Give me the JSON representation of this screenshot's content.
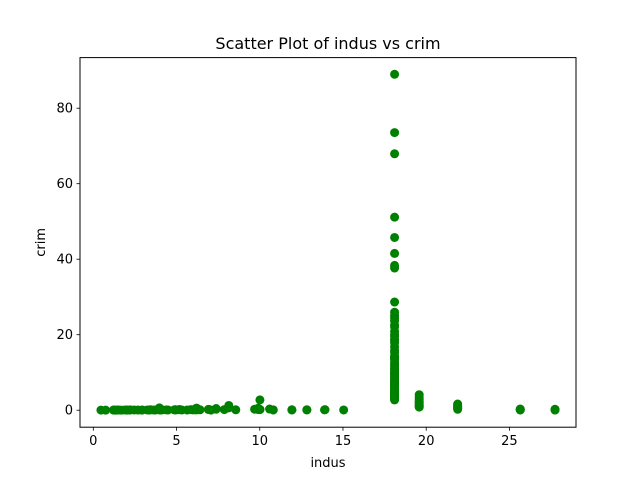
{
  "chart_data": {
    "type": "scatter",
    "title": "Scatter Plot of indus vs crim",
    "xlabel": "indus",
    "ylabel": "crim",
    "xlim": [
      -0.8,
      29.0
    ],
    "ylim": [
      -4.5,
      93.4
    ],
    "xticks": [
      0,
      5,
      10,
      15,
      20,
      25
    ],
    "yticks": [
      0,
      20,
      40,
      60,
      80
    ],
    "grid": false,
    "color": "#008000",
    "series": [
      {
        "points": [
          {
            "x": 0.46,
            "y": 0.03
          },
          {
            "x": 0.74,
            "y": 0.02
          },
          {
            "x": 1.21,
            "y": 0.04
          },
          {
            "x": 1.25,
            "y": 0.02
          },
          {
            "x": 1.32,
            "y": 0.03
          },
          {
            "x": 1.38,
            "y": 0.01
          },
          {
            "x": 1.47,
            "y": 0.05
          },
          {
            "x": 1.52,
            "y": 0.04
          },
          {
            "x": 1.69,
            "y": 0.02
          },
          {
            "x": 1.89,
            "y": 0.07
          },
          {
            "x": 2.01,
            "y": 0.05
          },
          {
            "x": 2.02,
            "y": 0.03
          },
          {
            "x": 2.18,
            "y": 0.04
          },
          {
            "x": 2.24,
            "y": 0.08
          },
          {
            "x": 2.46,
            "y": 0.06
          },
          {
            "x": 2.68,
            "y": 0.05
          },
          {
            "x": 2.89,
            "y": 0.03
          },
          {
            "x": 2.95,
            "y": 0.06
          },
          {
            "x": 3.24,
            "y": 0.07
          },
          {
            "x": 3.37,
            "y": 0.04
          },
          {
            "x": 3.41,
            "y": 0.09
          },
          {
            "x": 3.44,
            "y": 0.12
          },
          {
            "x": 3.64,
            "y": 0.05
          },
          {
            "x": 3.75,
            "y": 0.06
          },
          {
            "x": 3.97,
            "y": 0.62
          },
          {
            "x": 3.97,
            "y": 0.33
          },
          {
            "x": 3.97,
            "y": 0.11
          },
          {
            "x": 4.0,
            "y": 0.08
          },
          {
            "x": 4.05,
            "y": 0.05
          },
          {
            "x": 4.15,
            "y": 0.09
          },
          {
            "x": 4.39,
            "y": 0.1
          },
          {
            "x": 4.49,
            "y": 0.07
          },
          {
            "x": 4.86,
            "y": 0.09
          },
          {
            "x": 4.93,
            "y": 0.14
          },
          {
            "x": 4.95,
            "y": 0.06
          },
          {
            "x": 5.13,
            "y": 0.13
          },
          {
            "x": 5.19,
            "y": 0.18
          },
          {
            "x": 5.32,
            "y": 0.06
          },
          {
            "x": 5.64,
            "y": 0.04
          },
          {
            "x": 5.86,
            "y": 0.17
          },
          {
            "x": 5.96,
            "y": 0.09
          },
          {
            "x": 6.06,
            "y": 0.11
          },
          {
            "x": 6.07,
            "y": 0.15
          },
          {
            "x": 6.2,
            "y": 0.32
          },
          {
            "x": 6.2,
            "y": 0.56
          },
          {
            "x": 6.2,
            "y": 0.08
          },
          {
            "x": 6.41,
            "y": 0.12
          },
          {
            "x": 6.91,
            "y": 0.21
          },
          {
            "x": 6.96,
            "y": 0.18
          },
          {
            "x": 7.07,
            "y": 0.03
          },
          {
            "x": 7.38,
            "y": 0.26
          },
          {
            "x": 7.38,
            "y": 0.45
          },
          {
            "x": 7.87,
            "y": 0.17
          },
          {
            "x": 8.14,
            "y": 0.63
          },
          {
            "x": 8.14,
            "y": 1.25
          },
          {
            "x": 8.14,
            "y": 0.84
          },
          {
            "x": 8.56,
            "y": 0.11
          },
          {
            "x": 9.69,
            "y": 0.26
          },
          {
            "x": 9.9,
            "y": 0.18
          },
          {
            "x": 9.9,
            "y": 0.52
          },
          {
            "x": 10.01,
            "y": 2.73
          },
          {
            "x": 10.01,
            "y": 0.17
          },
          {
            "x": 10.01,
            "y": 0.22
          },
          {
            "x": 10.59,
            "y": 0.31
          },
          {
            "x": 10.81,
            "y": 0.09
          },
          {
            "x": 10.81,
            "y": 0.07
          },
          {
            "x": 11.93,
            "y": 0.06
          },
          {
            "x": 11.93,
            "y": 0.11
          },
          {
            "x": 12.83,
            "y": 0.08
          },
          {
            "x": 12.83,
            "y": 0.12
          },
          {
            "x": 13.89,
            "y": 0.09
          },
          {
            "x": 13.92,
            "y": 0.15
          },
          {
            "x": 15.04,
            "y": 0.07
          },
          {
            "x": 18.1,
            "y": 88.98
          },
          {
            "x": 18.1,
            "y": 73.53
          },
          {
            "x": 18.1,
            "y": 67.92
          },
          {
            "x": 18.1,
            "y": 51.14
          },
          {
            "x": 18.1,
            "y": 45.75
          },
          {
            "x": 18.1,
            "y": 41.53
          },
          {
            "x": 18.1,
            "y": 38.35
          },
          {
            "x": 18.1,
            "y": 37.66
          },
          {
            "x": 18.1,
            "y": 28.66
          },
          {
            "x": 18.1,
            "y": 25.95
          },
          {
            "x": 18.1,
            "y": 25.05
          },
          {
            "x": 18.1,
            "y": 24.39
          },
          {
            "x": 18.1,
            "y": 23.65
          },
          {
            "x": 18.1,
            "y": 22.6
          },
          {
            "x": 18.1,
            "y": 22.05
          },
          {
            "x": 18.1,
            "y": 20.85
          },
          {
            "x": 18.1,
            "y": 20.08
          },
          {
            "x": 18.1,
            "y": 19.61
          },
          {
            "x": 18.1,
            "y": 18.81
          },
          {
            "x": 18.1,
            "y": 18.5
          },
          {
            "x": 18.1,
            "y": 17.87
          },
          {
            "x": 18.1,
            "y": 16.81
          },
          {
            "x": 18.1,
            "y": 15.86
          },
          {
            "x": 18.1,
            "y": 15.29
          },
          {
            "x": 18.1,
            "y": 14.33
          },
          {
            "x": 18.1,
            "y": 14.05
          },
          {
            "x": 18.1,
            "y": 13.68
          },
          {
            "x": 18.1,
            "y": 13.52
          },
          {
            "x": 18.1,
            "y": 12.8
          },
          {
            "x": 18.1,
            "y": 12.25
          },
          {
            "x": 18.1,
            "y": 11.81
          },
          {
            "x": 18.1,
            "y": 11.16
          },
          {
            "x": 18.1,
            "y": 10.83
          },
          {
            "x": 18.1,
            "y": 10.23
          },
          {
            "x": 18.1,
            "y": 9.92
          },
          {
            "x": 18.1,
            "y": 9.59
          },
          {
            "x": 18.1,
            "y": 9.33
          },
          {
            "x": 18.1,
            "y": 8.98
          },
          {
            "x": 18.1,
            "y": 8.72
          },
          {
            "x": 18.1,
            "y": 8.27
          },
          {
            "x": 18.1,
            "y": 8.05
          },
          {
            "x": 18.1,
            "y": 7.67
          },
          {
            "x": 18.1,
            "y": 7.4
          },
          {
            "x": 18.1,
            "y": 7.05
          },
          {
            "x": 18.1,
            "y": 6.8
          },
          {
            "x": 18.1,
            "y": 6.65
          },
          {
            "x": 18.1,
            "y": 6.44
          },
          {
            "x": 18.1,
            "y": 6.28
          },
          {
            "x": 18.1,
            "y": 5.87
          },
          {
            "x": 18.1,
            "y": 5.58
          },
          {
            "x": 18.1,
            "y": 5.29
          },
          {
            "x": 18.1,
            "y": 5.09
          },
          {
            "x": 18.1,
            "y": 4.87
          },
          {
            "x": 18.1,
            "y": 4.66
          },
          {
            "x": 18.1,
            "y": 4.42
          },
          {
            "x": 18.1,
            "y": 4.22
          },
          {
            "x": 18.1,
            "y": 4.03
          },
          {
            "x": 18.1,
            "y": 3.85
          },
          {
            "x": 18.1,
            "y": 3.69
          },
          {
            "x": 18.1,
            "y": 3.47
          },
          {
            "x": 18.1,
            "y": 3.32
          },
          {
            "x": 18.1,
            "y": 3.16
          },
          {
            "x": 18.1,
            "y": 2.92
          },
          {
            "x": 18.1,
            "y": 2.73
          },
          {
            "x": 19.58,
            "y": 4.1
          },
          {
            "x": 19.58,
            "y": 3.53
          },
          {
            "x": 19.58,
            "y": 2.95
          },
          {
            "x": 19.58,
            "y": 2.45
          },
          {
            "x": 19.58,
            "y": 2.15
          },
          {
            "x": 19.58,
            "y": 1.83
          },
          {
            "x": 19.58,
            "y": 1.52
          },
          {
            "x": 19.58,
            "y": 1.27
          },
          {
            "x": 19.58,
            "y": 1.05
          },
          {
            "x": 19.58,
            "y": 0.82
          },
          {
            "x": 21.89,
            "y": 1.63
          },
          {
            "x": 21.89,
            "y": 1.23
          },
          {
            "x": 21.89,
            "y": 0.92
          },
          {
            "x": 21.89,
            "y": 0.67
          },
          {
            "x": 21.89,
            "y": 0.44
          },
          {
            "x": 21.89,
            "y": 0.25
          },
          {
            "x": 25.65,
            "y": 0.32
          },
          {
            "x": 25.65,
            "y": 0.2
          },
          {
            "x": 25.65,
            "y": 0.1
          },
          {
            "x": 25.65,
            "y": 0.06
          },
          {
            "x": 27.74,
            "y": 0.24
          },
          {
            "x": 27.74,
            "y": 0.12
          },
          {
            "x": 27.74,
            "y": 0.05
          }
        ]
      }
    ]
  }
}
